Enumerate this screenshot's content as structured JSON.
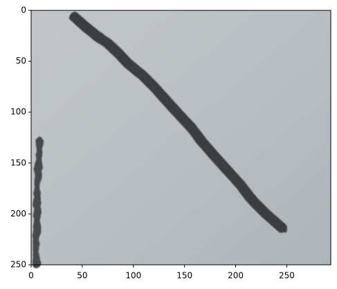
{
  "chart_data": {
    "type": "image",
    "xlim": [
      0,
      293
    ],
    "xticks": [
      0,
      50,
      100,
      150,
      200,
      250
    ],
    "ylim": [
      250,
      0
    ],
    "yticks": [
      0,
      50,
      100,
      150,
      200,
      250
    ]
  }
}
